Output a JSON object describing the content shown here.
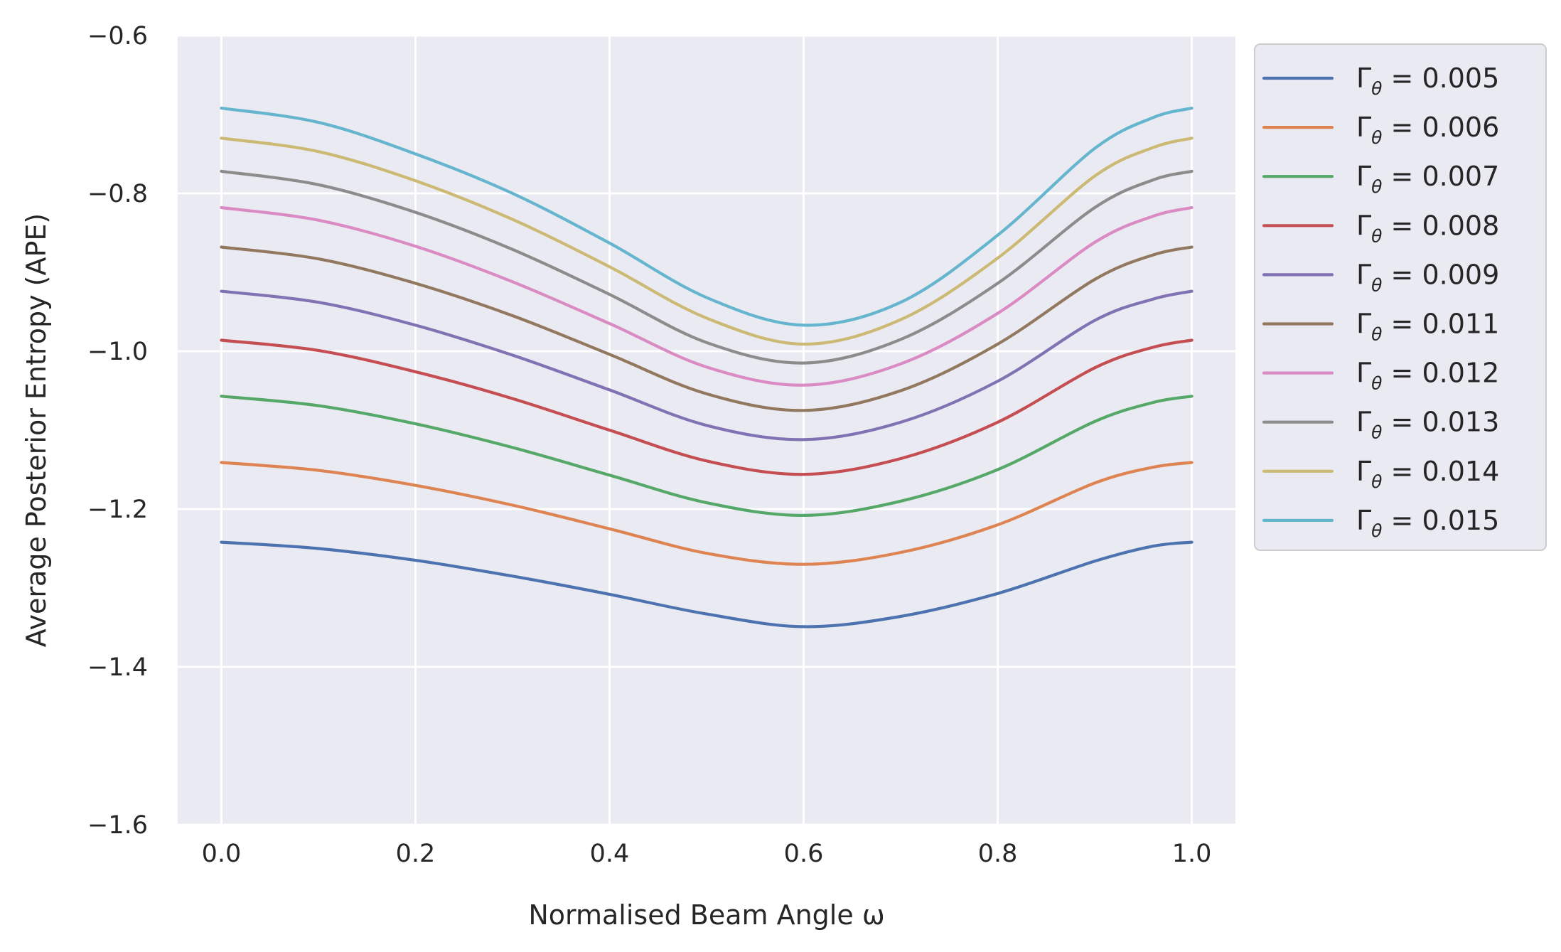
{
  "chart_data": {
    "type": "line",
    "title": "",
    "xlabel": "Normalised Beam Angle ω",
    "ylabel": "Average Posterior Entropy (APE)",
    "xlim": [
      -0.045,
      1.045
    ],
    "ylim": [
      -1.6,
      -0.6
    ],
    "xticks": [
      0.0,
      0.2,
      0.4,
      0.6,
      0.8,
      1.0
    ],
    "xtick_labels": [
      "0.0",
      "0.2",
      "0.4",
      "0.6",
      "0.8",
      "1.0"
    ],
    "yticks": [
      -0.6,
      -0.8,
      -1.0,
      -1.2,
      -1.4,
      -1.6
    ],
    "ytick_labels": [
      "−0.6",
      "−0.8",
      "−1.0",
      "−1.2",
      "−1.4",
      "−1.6"
    ],
    "grid": true,
    "background": "#eaeaf2",
    "legend_position": "outside-right-top",
    "x": [
      0.0,
      0.1,
      0.2,
      0.3,
      0.4,
      0.5,
      0.6,
      0.7,
      0.8,
      0.9,
      0.96,
      1.0
    ],
    "series": [
      {
        "name": "Γθ = 0.005",
        "name_main": "Γ",
        "name_sub": "θ",
        "name_tail": " = 0.005",
        "color": "#4c72b0",
        "values": [
          -1.242,
          -1.25,
          -1.265,
          -1.285,
          -1.308,
          -1.333,
          -1.349,
          -1.336,
          -1.307,
          -1.266,
          -1.247,
          -1.242
        ]
      },
      {
        "name": "Γθ = 0.006",
        "name_main": "Γ",
        "name_sub": "θ",
        "name_tail": " = 0.006",
        "color": "#dd8452",
        "values": [
          -1.141,
          -1.151,
          -1.17,
          -1.195,
          -1.225,
          -1.256,
          -1.27,
          -1.255,
          -1.22,
          -1.167,
          -1.147,
          -1.141
        ]
      },
      {
        "name": "Γθ = 0.007",
        "name_main": "Γ",
        "name_sub": "θ",
        "name_tail": " = 0.007",
        "color": "#55a868",
        "values": [
          -1.057,
          -1.069,
          -1.092,
          -1.122,
          -1.157,
          -1.192,
          -1.208,
          -1.19,
          -1.15,
          -1.089,
          -1.065,
          -1.057
        ]
      },
      {
        "name": "Γθ = 0.008",
        "name_main": "Γ",
        "name_sub": "θ",
        "name_tail": " = 0.008",
        "color": "#c44e52",
        "values": [
          -0.986,
          -0.999,
          -1.026,
          -1.06,
          -1.1,
          -1.139,
          -1.156,
          -1.136,
          -1.09,
          -1.021,
          -0.995,
          -0.986
        ]
      },
      {
        "name": "Γθ = 0.009",
        "name_main": "Γ",
        "name_sub": "θ",
        "name_tail": " = 0.009",
        "color": "#8172b3",
        "values": [
          -0.924,
          -0.938,
          -0.967,
          -1.005,
          -1.049,
          -1.094,
          -1.112,
          -1.09,
          -1.038,
          -0.961,
          -0.934,
          -0.924
        ]
      },
      {
        "name": "Γθ = 0.011",
        "name_main": "Γ",
        "name_sub": "θ",
        "name_tail": " = 0.011",
        "color": "#937860",
        "values": [
          -0.868,
          -0.883,
          -0.914,
          -0.955,
          -1.004,
          -1.054,
          -1.075,
          -1.05,
          -0.991,
          -0.909,
          -0.878,
          -0.868
        ]
      },
      {
        "name": "Γθ = 0.012",
        "name_main": "Γ",
        "name_sub": "θ",
        "name_tail": " = 0.012",
        "color": "#da8bc3",
        "values": [
          -0.818,
          -0.834,
          -0.867,
          -0.912,
          -0.965,
          -1.02,
          -1.043,
          -1.016,
          -0.952,
          -0.862,
          -0.829,
          -0.818
        ]
      },
      {
        "name": "Γθ = 0.013",
        "name_main": "Γ",
        "name_sub": "θ",
        "name_tail": " = 0.013",
        "color": "#8c8c8c",
        "values": [
          -0.772,
          -0.789,
          -0.824,
          -0.871,
          -0.928,
          -0.989,
          -1.015,
          -0.985,
          -0.914,
          -0.818,
          -0.783,
          -0.772
        ]
      },
      {
        "name": "Γθ = 0.014",
        "name_main": "Γ",
        "name_sub": "θ",
        "name_tail": " = 0.014",
        "color": "#ccb974",
        "values": [
          -0.73,
          -0.747,
          -0.784,
          -0.833,
          -0.893,
          -0.958,
          -0.991,
          -0.96,
          -0.882,
          -0.778,
          -0.742,
          -0.73
        ]
      },
      {
        "name": "Γθ = 0.015",
        "name_main": "Γ",
        "name_sub": "θ",
        "name_tail": " = 0.015",
        "color": "#64b5cd",
        "values": [
          -0.692,
          -0.71,
          -0.75,
          -0.8,
          -0.863,
          -0.932,
          -0.967,
          -0.938,
          -0.853,
          -0.743,
          -0.704,
          -0.692
        ]
      }
    ]
  }
}
